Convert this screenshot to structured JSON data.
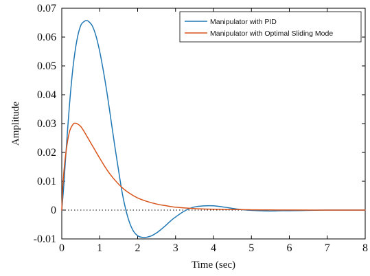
{
  "chart_data": {
    "type": "line",
    "title": "",
    "xlabel": "Time (sec)",
    "ylabel": "Amplitude",
    "xlim": [
      0,
      8
    ],
    "ylim": [
      -0.01,
      0.07
    ],
    "x_ticks": [
      0,
      1,
      2,
      3,
      4,
      5,
      6,
      7,
      8
    ],
    "y_ticks": [
      -0.01,
      0,
      0.01,
      0.02,
      0.03,
      0.04,
      0.05,
      0.06,
      0.07
    ],
    "x_tick_labels": [
      "0",
      "1",
      "2",
      "3",
      "4",
      "5",
      "6",
      "7",
      "8"
    ],
    "y_tick_labels": [
      "-0.01",
      "0",
      "0.01",
      "0.02",
      "0.03",
      "0.04",
      "0.05",
      "0.06",
      "0.07"
    ],
    "grid": false,
    "legend_position": "top-right",
    "reference_line": {
      "y": 0,
      "style": "dotted",
      "color": "#000000"
    },
    "series": [
      {
        "name": "Manipulator with PID",
        "color": "#1f77b4",
        "x": [
          0,
          0.05,
          0.1,
          0.2,
          0.3,
          0.4,
          0.5,
          0.6,
          0.65,
          0.7,
          0.8,
          0.9,
          1.0,
          1.1,
          1.2,
          1.3,
          1.4,
          1.5,
          1.6,
          1.7,
          1.8,
          1.9,
          2.0,
          2.1,
          2.2,
          2.3,
          2.35,
          2.4,
          2.5,
          2.6,
          2.7,
          2.8,
          2.9,
          3.0,
          3.2,
          3.4,
          3.6,
          3.8,
          4.0,
          4.2,
          4.4,
          4.6,
          4.8,
          5.0,
          5.2,
          5.4,
          5.6,
          5.8,
          6.0,
          6.5,
          7.0,
          7.5,
          8.0
        ],
        "values": [
          0,
          0.008,
          0.018,
          0.036,
          0.05,
          0.059,
          0.064,
          0.0655,
          0.0657,
          0.0655,
          0.064,
          0.0605,
          0.055,
          0.048,
          0.04,
          0.031,
          0.022,
          0.0135,
          0.0055,
          -0.0005,
          -0.0048,
          -0.0075,
          -0.0089,
          -0.0094,
          -0.0095,
          -0.0092,
          -0.009,
          -0.0087,
          -0.0079,
          -0.0069,
          -0.0058,
          -0.0046,
          -0.0034,
          -0.0024,
          -0.0006,
          0.0007,
          0.0013,
          0.0015,
          0.0015,
          0.0012,
          0.0008,
          0.0004,
          0.0001,
          -0.0001,
          -0.0002,
          -0.0003,
          -0.0003,
          -0.0002,
          -0.0002,
          -0.0001,
          0,
          0,
          0
        ]
      },
      {
        "name": "Manipulator with Optimal Sliding Mode",
        "color": "#d95319",
        "x": [
          0,
          0.03,
          0.1,
          0.2,
          0.3,
          0.35,
          0.4,
          0.5,
          0.6,
          0.8,
          1.0,
          1.2,
          1.4,
          1.6,
          1.8,
          2.0,
          2.2,
          2.5,
          2.8,
          3.0,
          3.5,
          4.0,
          4.5,
          5.0,
          5.5,
          6.0,
          7.0,
          8.0
        ],
        "values": [
          0,
          0.009,
          0.019,
          0.027,
          0.0298,
          0.0301,
          0.03,
          0.029,
          0.027,
          0.0225,
          0.018,
          0.0138,
          0.0104,
          0.0077,
          0.0057,
          0.0042,
          0.0032,
          0.0021,
          0.0014,
          0.001,
          0.0005,
          0.0003,
          0.0002,
          0.0001,
          5e-05,
          2e-05,
          0,
          0
        ]
      }
    ]
  }
}
